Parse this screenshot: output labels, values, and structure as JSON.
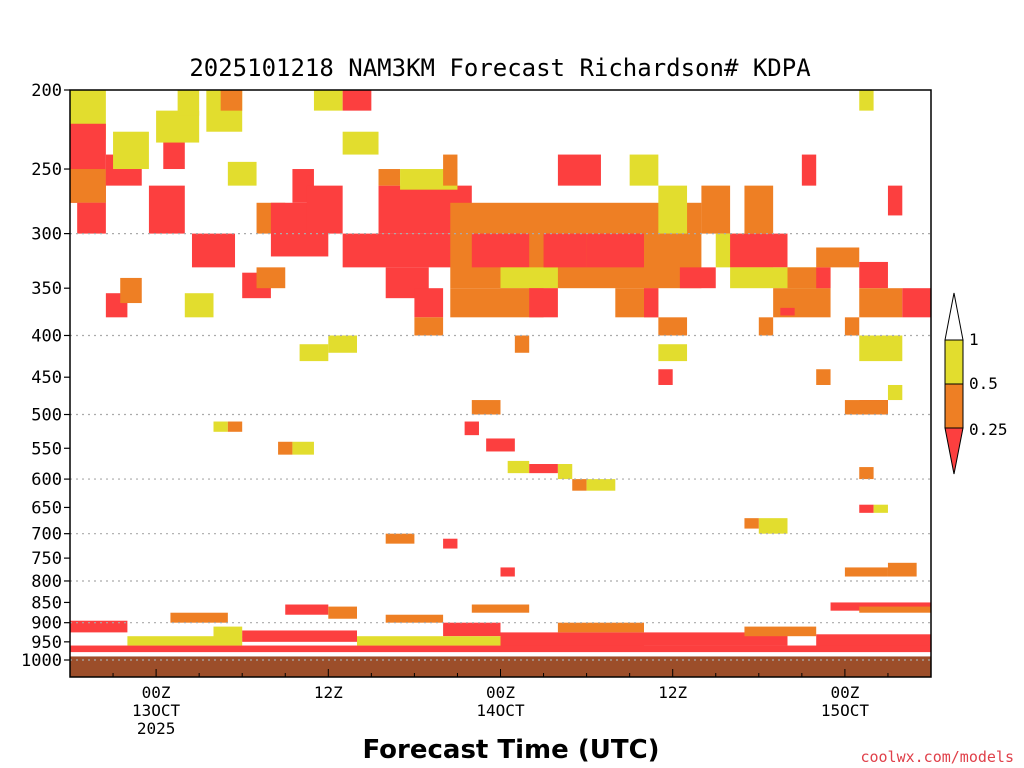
{
  "chart_data": {
    "type": "heatmap",
    "title": "2025101218 NAM3KM Forecast Richardson# KDPA",
    "xlabel": "Forecast Time (UTC)",
    "ylabel": "",
    "credit": "coolwx.com/models",
    "y_axis": {
      "scale": "pressure",
      "reversed": true,
      "range": [
        200,
        1000
      ],
      "ticks": [
        "200",
        "250",
        "300",
        "350",
        "400",
        "450",
        "500",
        "550",
        "600",
        "650",
        "700",
        "750",
        "800",
        "850",
        "900",
        "950",
        "1000"
      ],
      "dotted_gridlines": [
        "300",
        "400",
        "500",
        "600",
        "700",
        "800",
        "900",
        "1000"
      ]
    },
    "x_axis": {
      "range_hours": [
        0,
        60
      ],
      "tick_labels": [
        {
          "hour": 6,
          "line1": "00Z",
          "line2": "13OCT",
          "line3": "2025"
        },
        {
          "hour": 18,
          "line1": "12Z",
          "line2": "",
          "line3": ""
        },
        {
          "hour": 30,
          "line1": "00Z",
          "line2": "14OCT",
          "line3": ""
        },
        {
          "hour": 42,
          "line1": "12Z",
          "line2": "",
          "line3": ""
        },
        {
          "hour": 54,
          "line1": "00Z",
          "line2": "15OCT",
          "line3": ""
        }
      ]
    },
    "legend": {
      "placement": "right",
      "levels": [
        "1",
        "0.5",
        "0.25"
      ],
      "bins": [
        {
          "range": "< 0.25",
          "color": "#fc3f3f"
        },
        {
          "range": "0.25-0.5",
          "color": "#ee7f24"
        },
        {
          "range": "0.5-1",
          "color": "#e2dd2e"
        },
        {
          "range": "> 1",
          "color": "#ffffff"
        }
      ]
    },
    "colors": {
      "lt025": "#fc3f3f",
      "b025_05": "#ee7f24",
      "b05_1": "#e2dd2e",
      "surface": "#9c4e2a"
    },
    "surface_pressure": 990,
    "cells": [
      {
        "h": [
          0,
          2.5
        ],
        "p": [
          200,
          230
        ],
        "c": "b05_1"
      },
      {
        "h": [
          0,
          2.5
        ],
        "p": [
          220,
          275
        ],
        "c": "lt025"
      },
      {
        "h": [
          0,
          2.5
        ],
        "p": [
          250,
          275
        ],
        "c": "b025_05"
      },
      {
        "h": [
          0.5,
          2.5
        ],
        "p": [
          275,
          300
        ],
        "c": "lt025"
      },
      {
        "h": [
          2.5,
          5
        ],
        "p": [
          240,
          262
        ],
        "c": "lt025"
      },
      {
        "h": [
          3,
          5.5
        ],
        "p": [
          225,
          250
        ],
        "c": "b05_1"
      },
      {
        "h": [
          5.5,
          8
        ],
        "p": [
          262,
          300
        ],
        "c": "lt025"
      },
      {
        "h": [
          6.5,
          8
        ],
        "p": [
          225,
          250
        ],
        "c": "lt025"
      },
      {
        "h": [
          6,
          9
        ],
        "p": [
          212,
          232
        ],
        "c": "b05_1"
      },
      {
        "h": [
          7.5,
          9
        ],
        "p": [
          200,
          215
        ],
        "c": "b05_1"
      },
      {
        "h": [
          8.5,
          11.5
        ],
        "p": [
          300,
          330
        ],
        "c": "lt025"
      },
      {
        "h": [
          9.5,
          12
        ],
        "p": [
          200,
          225
        ],
        "c": "b05_1"
      },
      {
        "h": [
          10.5,
          12
        ],
        "p": [
          200,
          212
        ],
        "c": "b025_05"
      },
      {
        "h": [
          11,
          13
        ],
        "p": [
          245,
          262
        ],
        "c": "b05_1"
      },
      {
        "h": [
          13,
          15
        ],
        "p": [
          275,
          300
        ],
        "c": "b025_05"
      },
      {
        "h": [
          14,
          18
        ],
        "p": [
          275,
          320
        ],
        "c": "lt025"
      },
      {
        "h": [
          15.5,
          17
        ],
        "p": [
          250,
          275
        ],
        "c": "lt025"
      },
      {
        "h": [
          16.5,
          19
        ],
        "p": [
          262,
          300
        ],
        "c": "lt025"
      },
      {
        "h": [
          17,
          19
        ],
        "p": [
          200,
          212
        ],
        "c": "b05_1"
      },
      {
        "h": [
          19,
          21
        ],
        "p": [
          200,
          212
        ],
        "c": "lt025"
      },
      {
        "h": [
          19,
          21.5
        ],
        "p": [
          225,
          240
        ],
        "c": "b05_1"
      },
      {
        "h": [
          19,
          28
        ],
        "p": [
          300,
          330
        ],
        "c": "lt025"
      },
      {
        "h": [
          21.5,
          28
        ],
        "p": [
          262,
          300
        ],
        "c": "lt025"
      },
      {
        "h": [
          21.5,
          23
        ],
        "p": [
          250,
          262
        ],
        "c": "b025_05"
      },
      {
        "h": [
          22,
          25
        ],
        "p": [
          330,
          360
        ],
        "c": "lt025"
      },
      {
        "h": [
          24,
          26
        ],
        "p": [
          350,
          380
        ],
        "c": "lt025"
      },
      {
        "h": [
          23,
          27
        ],
        "p": [
          250,
          265
        ],
        "c": "b05_1"
      },
      {
        "h": [
          26,
          27
        ],
        "p": [
          240,
          262
        ],
        "c": "b025_05"
      },
      {
        "h": [
          26.5,
          44
        ],
        "p": [
          275,
          350
        ],
        "c": "b025_05"
      },
      {
        "h": [
          28,
          32
        ],
        "p": [
          300,
          330
        ],
        "c": "lt025"
      },
      {
        "h": [
          30,
          34
        ],
        "p": [
          330,
          350
        ],
        "c": "b05_1"
      },
      {
        "h": [
          26.5,
          33
        ],
        "p": [
          350,
          380
        ],
        "c": "b025_05"
      },
      {
        "h": [
          32,
          34
        ],
        "p": [
          350,
          380
        ],
        "c": "lt025"
      },
      {
        "h": [
          33,
          36
        ],
        "p": [
          300,
          330
        ],
        "c": "lt025"
      },
      {
        "h": [
          34,
          37
        ],
        "p": [
          240,
          262
        ],
        "c": "lt025"
      },
      {
        "h": [
          36,
          40
        ],
        "p": [
          300,
          330
        ],
        "c": "lt025"
      },
      {
        "h": [
          39,
          41
        ],
        "p": [
          240,
          262
        ],
        "c": "b05_1"
      },
      {
        "h": [
          38,
          41
        ],
        "p": [
          350,
          380
        ],
        "c": "b025_05"
      },
      {
        "h": [
          40,
          41
        ],
        "p": [
          350,
          380
        ],
        "c": "lt025"
      },
      {
        "h": [
          41,
          43
        ],
        "p": [
          262,
          300
        ],
        "c": "b05_1"
      },
      {
        "h": [
          42.5,
          45
        ],
        "p": [
          330,
          350
        ],
        "c": "lt025"
      },
      {
        "h": [
          44,
          46
        ],
        "p": [
          262,
          300
        ],
        "c": "b025_05"
      },
      {
        "h": [
          45,
          49
        ],
        "p": [
          300,
          330
        ],
        "c": "b05_1"
      },
      {
        "h": [
          46,
          50
        ],
        "p": [
          300,
          330
        ],
        "c": "lt025"
      },
      {
        "h": [
          47,
          49
        ],
        "p": [
          262,
          300
        ],
        "c": "b025_05"
      },
      {
        "h": [
          46,
          52
        ],
        "p": [
          330,
          350
        ],
        "c": "b05_1"
      },
      {
        "h": [
          49,
          53
        ],
        "p": [
          350,
          380
        ],
        "c": "b025_05"
      },
      {
        "h": [
          50,
          53
        ],
        "p": [
          330,
          350
        ],
        "c": "b025_05"
      },
      {
        "h": [
          52,
          53
        ],
        "p": [
          330,
          350
        ],
        "c": "lt025"
      },
      {
        "h": [
          52,
          55
        ],
        "p": [
          312,
          330
        ],
        "c": "b025_05"
      },
      {
        "h": [
          55,
          57
        ],
        "p": [
          325,
          350
        ],
        "c": "lt025"
      },
      {
        "h": [
          55,
          58
        ],
        "p": [
          350,
          380
        ],
        "c": "b025_05"
      },
      {
        "h": [
          58,
          60
        ],
        "p": [
          350,
          380
        ],
        "c": "lt025"
      },
      {
        "h": [
          57,
          58
        ],
        "p": [
          262,
          285
        ],
        "c": "lt025"
      },
      {
        "h": [
          51,
          52
        ],
        "p": [
          240,
          262
        ],
        "c": "lt025"
      },
      {
        "h": [
          55,
          56
        ],
        "p": [
          200,
          212
        ],
        "c": "b05_1"
      },
      {
        "h": [
          2.5,
          4
        ],
        "p": [
          355,
          380
        ],
        "c": "lt025"
      },
      {
        "h": [
          3.5,
          5
        ],
        "p": [
          340,
          365
        ],
        "c": "b025_05"
      },
      {
        "h": [
          8,
          10
        ],
        "p": [
          355,
          380
        ],
        "c": "b05_1"
      },
      {
        "h": [
          12,
          14
        ],
        "p": [
          335,
          360
        ],
        "c": "lt025"
      },
      {
        "h": [
          13,
          15
        ],
        "p": [
          330,
          350
        ],
        "c": "b025_05"
      },
      {
        "h": [
          24,
          26
        ],
        "p": [
          380,
          400
        ],
        "c": "b025_05"
      },
      {
        "h": [
          16,
          18
        ],
        "p": [
          410,
          430
        ],
        "c": "b05_1"
      },
      {
        "h": [
          18,
          20
        ],
        "p": [
          400,
          420
        ],
        "c": "b05_1"
      },
      {
        "h": [
          31,
          32
        ],
        "p": [
          400,
          420
        ],
        "c": "b025_05"
      },
      {
        "h": [
          41,
          43
        ],
        "p": [
          380,
          400
        ],
        "c": "b025_05"
      },
      {
        "h": [
          41,
          43
        ],
        "p": [
          410,
          430
        ],
        "c": "b05_1"
      },
      {
        "h": [
          48,
          49
        ],
        "p": [
          380,
          400
        ],
        "c": "b025_05"
      },
      {
        "h": [
          54,
          55
        ],
        "p": [
          380,
          400
        ],
        "c": "b025_05"
      },
      {
        "h": [
          55,
          58
        ],
        "p": [
          400,
          430
        ],
        "c": "b05_1"
      },
      {
        "h": [
          52,
          53
        ],
        "p": [
          440,
          460
        ],
        "c": "b025_05"
      },
      {
        "h": [
          41,
          42
        ],
        "p": [
          440,
          460
        ],
        "c": "lt025"
      },
      {
        "h": [
          57,
          58
        ],
        "p": [
          460,
          480
        ],
        "c": "b05_1"
      },
      {
        "h": [
          55,
          57
        ],
        "p": [
          480,
          500
        ],
        "c": "lt025"
      },
      {
        "h": [
          54,
          57
        ],
        "p": [
          480,
          500
        ],
        "c": "b025_05"
      },
      {
        "h": [
          10,
          11
        ],
        "p": [
          510,
          525
        ],
        "c": "b05_1"
      },
      {
        "h": [
          11,
          12
        ],
        "p": [
          510,
          525
        ],
        "c": "b025_05"
      },
      {
        "h": [
          28,
          30
        ],
        "p": [
          480,
          500
        ],
        "c": "b025_05"
      },
      {
        "h": [
          27.5,
          28.5
        ],
        "p": [
          510,
          530
        ],
        "c": "lt025"
      },
      {
        "h": [
          29,
          31
        ],
        "p": [
          535,
          555
        ],
        "c": "lt025"
      },
      {
        "h": [
          30.5,
          32
        ],
        "p": [
          570,
          590
        ],
        "c": "b05_1"
      },
      {
        "h": [
          32,
          34
        ],
        "p": [
          575,
          590
        ],
        "c": "lt025"
      },
      {
        "h": [
          34,
          35
        ],
        "p": [
          575,
          600
        ],
        "c": "b05_1"
      },
      {
        "h": [
          35,
          36
        ],
        "p": [
          600,
          620
        ],
        "c": "b025_05"
      },
      {
        "h": [
          36,
          38
        ],
        "p": [
          600,
          620
        ],
        "c": "b05_1"
      },
      {
        "h": [
          14.5,
          15.5
        ],
        "p": [
          540,
          560
        ],
        "c": "b025_05"
      },
      {
        "h": [
          15.5,
          17
        ],
        "p": [
          540,
          560
        ],
        "c": "b05_1"
      },
      {
        "h": [
          55,
          56
        ],
        "p": [
          580,
          600
        ],
        "c": "b025_05"
      },
      {
        "h": [
          55,
          56
        ],
        "p": [
          645,
          660
        ],
        "c": "lt025"
      },
      {
        "h": [
          56,
          57
        ],
        "p": [
          645,
          660
        ],
        "c": "b05_1"
      },
      {
        "h": [
          48,
          50
        ],
        "p": [
          670,
          700
        ],
        "c": "b05_1"
      },
      {
        "h": [
          47,
          48
        ],
        "p": [
          670,
          690
        ],
        "c": "b025_05"
      },
      {
        "h": [
          22,
          24
        ],
        "p": [
          700,
          720
        ],
        "c": "b025_05"
      },
      {
        "h": [
          26,
          27
        ],
        "p": [
          710,
          730
        ],
        "c": "lt025"
      },
      {
        "h": [
          30,
          31
        ],
        "p": [
          770,
          790
        ],
        "c": "lt025"
      },
      {
        "h": [
          54,
          57
        ],
        "p": [
          770,
          790
        ],
        "c": "b025_05"
      },
      {
        "h": [
          57,
          59
        ],
        "p": [
          760,
          790
        ],
        "c": "b025_05"
      },
      {
        "h": [
          49.5,
          50.5
        ],
        "p": [
          370,
          378
        ],
        "c": "lt025"
      },
      {
        "h": [
          0,
          4
        ],
        "p": [
          895,
          925
        ],
        "c": "lt025"
      },
      {
        "h": [
          7,
          11
        ],
        "p": [
          875,
          900
        ],
        "c": "b025_05"
      },
      {
        "h": [
          10,
          12
        ],
        "p": [
          910,
          940
        ],
        "c": "b05_1"
      },
      {
        "h": [
          15,
          18
        ],
        "p": [
          855,
          880
        ],
        "c": "lt025"
      },
      {
        "h": [
          18,
          20
        ],
        "p": [
          860,
          890
        ],
        "c": "b025_05"
      },
      {
        "h": [
          22,
          26
        ],
        "p": [
          880,
          900
        ],
        "c": "b025_05"
      },
      {
        "h": [
          26,
          30
        ],
        "p": [
          900,
          935
        ],
        "c": "lt025"
      },
      {
        "h": [
          28,
          32
        ],
        "p": [
          855,
          875
        ],
        "c": "b025_05"
      },
      {
        "h": [
          30,
          40
        ],
        "p": [
          925,
          975
        ],
        "c": "lt025"
      },
      {
        "h": [
          34,
          40
        ],
        "p": [
          900,
          925
        ],
        "c": "b025_05"
      },
      {
        "h": [
          40,
          50
        ],
        "p": [
          925,
          960
        ],
        "c": "lt025"
      },
      {
        "h": [
          47,
          52
        ],
        "p": [
          910,
          935
        ],
        "c": "b025_05"
      },
      {
        "h": [
          52,
          60
        ],
        "p": [
          930,
          975
        ],
        "c": "lt025"
      },
      {
        "h": [
          53,
          60
        ],
        "p": [
          850,
          870
        ],
        "c": "lt025"
      },
      {
        "h": [
          55,
          60
        ],
        "p": [
          860,
          875
        ],
        "c": "b025_05"
      },
      {
        "h": [
          0,
          60
        ],
        "p": [
          960,
          978
        ],
        "c": "lt025"
      },
      {
        "h": [
          4,
          12
        ],
        "p": [
          935,
          960
        ],
        "c": "b05_1"
      },
      {
        "h": [
          12,
          20
        ],
        "p": [
          920,
          950
        ],
        "c": "lt025"
      },
      {
        "h": [
          20,
          30
        ],
        "p": [
          935,
          960
        ],
        "c": "b05_1"
      }
    ]
  }
}
